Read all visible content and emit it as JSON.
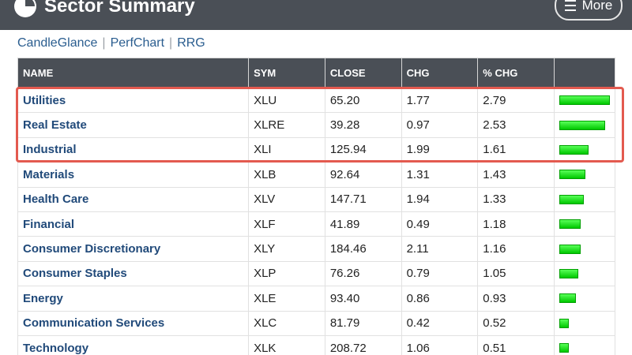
{
  "header": {
    "title": "Sector Summary",
    "more_label": "More"
  },
  "links": [
    "CandleGlance",
    "PerfChart",
    "RRG"
  ],
  "table": {
    "columns": [
      "NAME",
      "SYM",
      "CLOSE",
      "CHG",
      "% CHG",
      ""
    ],
    "rows": [
      {
        "name": "Utilities",
        "sym": "XLU",
        "close": "65.20",
        "chg": "1.77",
        "pct": "2.79"
      },
      {
        "name": "Real Estate",
        "sym": "XLRE",
        "close": "39.28",
        "chg": "0.97",
        "pct": "2.53"
      },
      {
        "name": "Industrial",
        "sym": "XLI",
        "close": "125.94",
        "chg": "1.99",
        "pct": "1.61"
      },
      {
        "name": "Materials",
        "sym": "XLB",
        "close": "92.64",
        "chg": "1.31",
        "pct": "1.43"
      },
      {
        "name": "Health Care",
        "sym": "XLV",
        "close": "147.71",
        "chg": "1.94",
        "pct": "1.33"
      },
      {
        "name": "Financial",
        "sym": "XLF",
        "close": "41.89",
        "chg": "0.49",
        "pct": "1.18"
      },
      {
        "name": "Consumer Discretionary",
        "sym": "XLY",
        "close": "184.46",
        "chg": "2.11",
        "pct": "1.16"
      },
      {
        "name": "Consumer Staples",
        "sym": "XLP",
        "close": "76.26",
        "chg": "0.79",
        "pct": "1.05"
      },
      {
        "name": "Energy",
        "sym": "XLE",
        "close": "93.40",
        "chg": "0.86",
        "pct": "0.93"
      },
      {
        "name": "Communication Services",
        "sym": "XLC",
        "close": "81.79",
        "chg": "0.42",
        "pct": "0.52"
      },
      {
        "name": "Technology",
        "sym": "XLK",
        "close": "208.72",
        "chg": "1.06",
        "pct": "0.51"
      }
    ]
  },
  "colors": {
    "header_bg": "#4a4f56",
    "link": "#2a5d8f",
    "bar": "#00c800",
    "highlight": "#e35a4f"
  }
}
